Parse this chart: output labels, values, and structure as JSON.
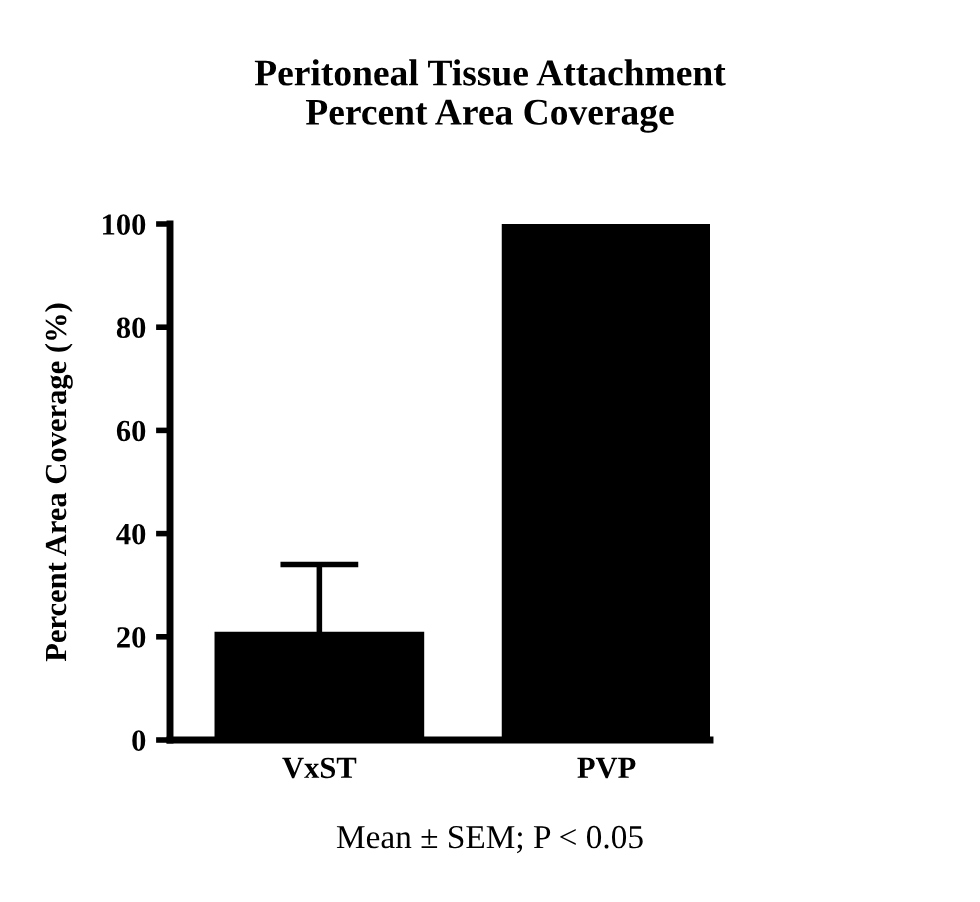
{
  "chart_data": {
    "type": "bar",
    "title": "Peritoneal Tissue Attachment\nPercent Area Coverage",
    "ylabel": "Percent Area Coverage (%)",
    "categories": [
      "VxST",
      "PVP"
    ],
    "series": [
      {
        "color": "#000000",
        "values": [
          21,
          100
        ],
        "errors": [
          13,
          null
        ]
      }
    ],
    "ylim": [
      0,
      100
    ],
    "yticks": [
      0,
      20,
      40,
      60,
      80,
      100
    ],
    "grid": false,
    "legend": false,
    "annotations": [
      "Mean ± SEM; P < 0.05"
    ]
  }
}
